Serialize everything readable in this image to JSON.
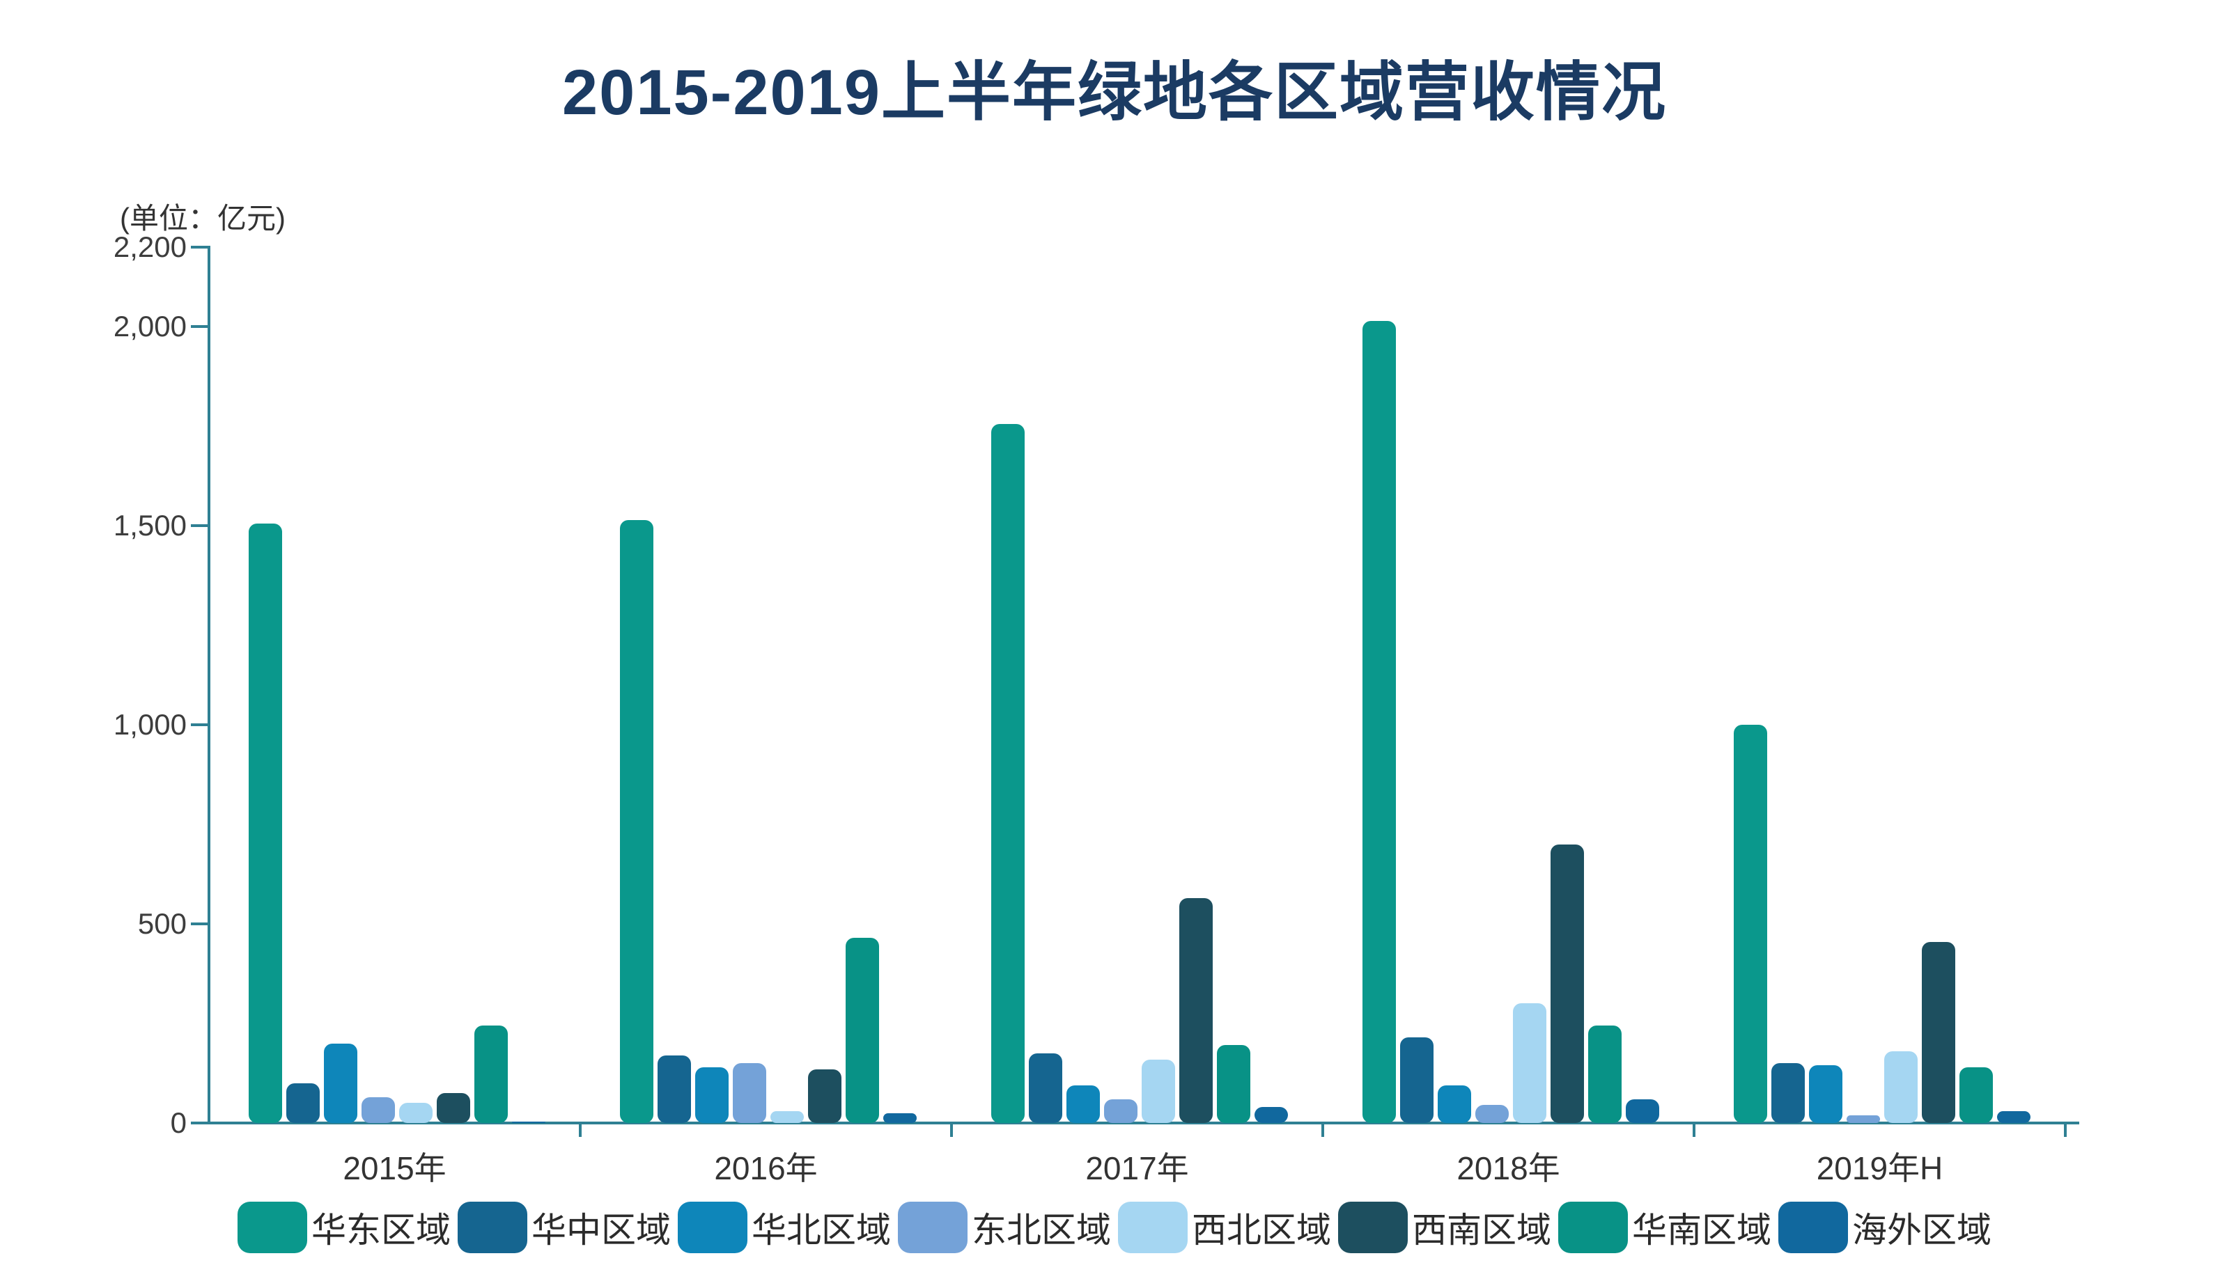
{
  "title": "2015-2019上半年绿地各区域营收情况",
  "unit_label": "(单位：亿元)",
  "colors": {
    "title_text": "#1b3b63",
    "axis": "#2f8093",
    "tick_text": "#3d3d3d",
    "category_text": "#333333",
    "legend_text": "#2b2b2b"
  },
  "chart_data": {
    "type": "bar",
    "title": "2015-2019上半年绿地各区域营收情况",
    "unit": "亿元",
    "categories": [
      "2015年",
      "2016年",
      "2017年",
      "2018年",
      "2019年H"
    ],
    "series": [
      {
        "name": "华东区域",
        "color": "#0a988c",
        "values": [
          1505,
          1515,
          1755,
          2015,
          1000
        ]
      },
      {
        "name": "华中区域",
        "color": "#156590",
        "values": [
          100,
          170,
          175,
          215,
          150
        ]
      },
      {
        "name": "华北区域",
        "color": "#0e86ba",
        "values": [
          200,
          140,
          95,
          95,
          145
        ]
      },
      {
        "name": "东北区域",
        "color": "#74a2d8",
        "values": [
          65,
          150,
          60,
          45,
          20
        ]
      },
      {
        "name": "西北区域",
        "color": "#a5d6f2",
        "values": [
          50,
          30,
          160,
          300,
          180
        ]
      },
      {
        "name": "西南区域",
        "color": "#1d4f5f",
        "values": [
          75,
          135,
          565,
          700,
          455
        ]
      },
      {
        "name": "华南区域",
        "color": "#089286",
        "values": [
          245,
          465,
          195,
          245,
          140
        ]
      },
      {
        "name": "海外区域",
        "color": "#11689e",
        "values": [
          2,
          25,
          40,
          60,
          30
        ]
      }
    ],
    "y_axis": {
      "ticks": [
        0,
        500,
        1000,
        1500,
        2000,
        2200
      ],
      "tick_labels": [
        "0",
        "500",
        "1,000",
        "1,500",
        "2,000",
        "2,200"
      ],
      "max": 2200
    },
    "grid": false,
    "legend_position": "bottom"
  }
}
